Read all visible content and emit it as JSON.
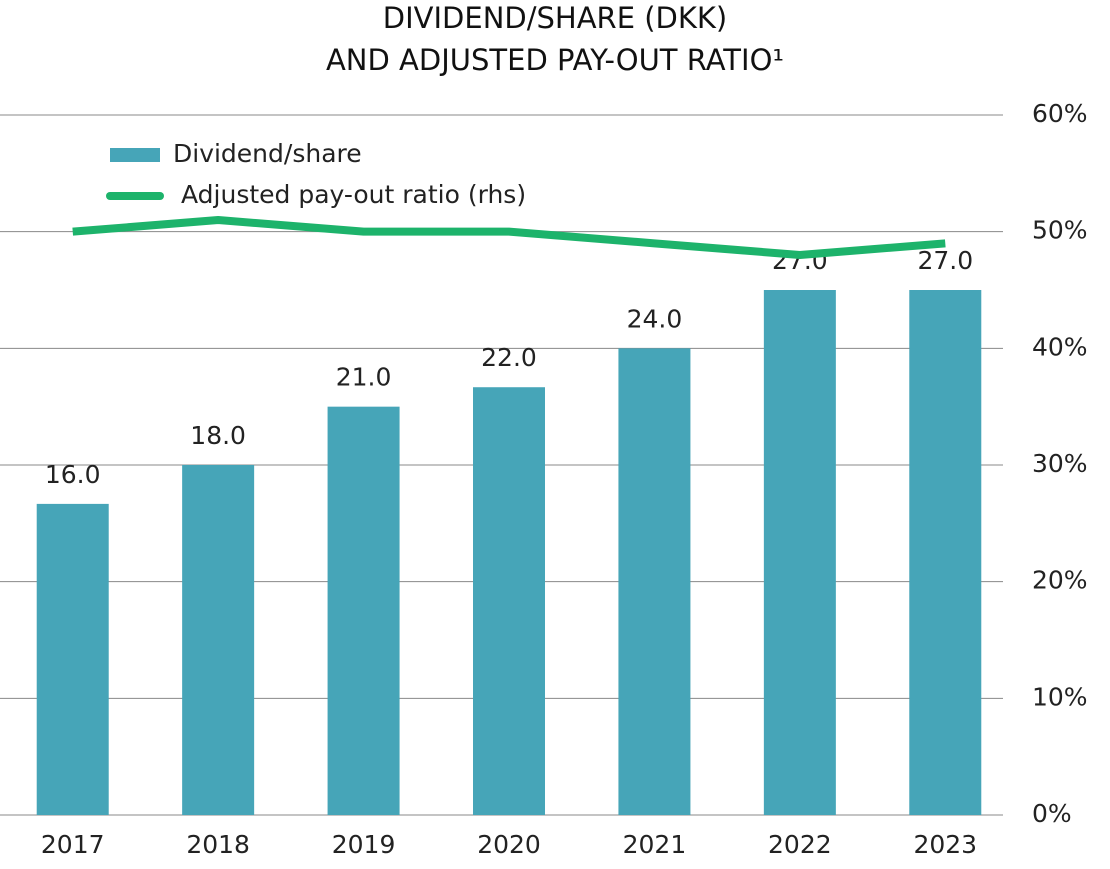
{
  "chart_data": {
    "type": "bar",
    "title": [
      "DIVIDEND/SHARE (DKK)",
      "AND ADJUSTED PAY-OUT RATIO¹"
    ],
    "categories": [
      "2017",
      "2018",
      "2019",
      "2020",
      "2021",
      "2022",
      "2023"
    ],
    "ylim": [
      0,
      36
    ],
    "y2lim": [
      0,
      60
    ],
    "y2ticks": [
      {
        "value": 0,
        "label": "0%"
      },
      {
        "value": 10,
        "label": "10%"
      },
      {
        "value": 20,
        "label": "20%"
      },
      {
        "value": 30,
        "label": "30%"
      },
      {
        "value": 40,
        "label": "40%"
      },
      {
        "value": 50,
        "label": "50%"
      },
      {
        "value": 60,
        "label": "60%"
      }
    ],
    "grid": true,
    "legend": "top-left",
    "series": [
      {
        "name": "Dividend/share",
        "type": "bar",
        "color": "#46a5b8",
        "values": [
          16,
          18,
          21,
          22,
          24,
          27,
          27
        ],
        "value_labels": [
          "16.0",
          "18.0",
          "21.0",
          "22.0",
          "24.0",
          "27.0",
          "27.0"
        ]
      },
      {
        "name": "Adjusted pay-out ratio (rhs)",
        "type": "line",
        "axis": "y2",
        "color": "#1db36b",
        "values": [
          50,
          51,
          50,
          50,
          49,
          48,
          49
        ]
      }
    ]
  }
}
